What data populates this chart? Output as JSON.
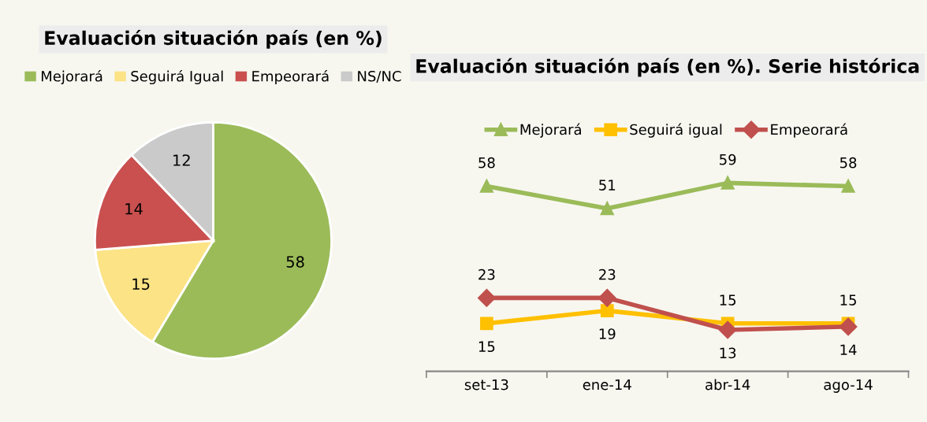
{
  "chart_data": [
    {
      "type": "pie",
      "title": "Evaluación situación país (en %)",
      "categories": [
        "Mejorará",
        "Seguirá Igual",
        "Empeorará",
        "NS/NC"
      ],
      "values": [
        58,
        15,
        14,
        12
      ],
      "colors": [
        "#9bbb59",
        "#fbe386",
        "#c9504f",
        "#cacaca"
      ],
      "data_labels": true,
      "legend": "top"
    },
    {
      "type": "line",
      "title": "Evaluación situación país (en %). Serie histórica",
      "categories": [
        "set-13",
        "ene-14",
        "abr-14",
        "ago-14"
      ],
      "series": [
        {
          "name": "Mejorará",
          "color": "#9bbb59",
          "marker": "triangle",
          "values": [
            58,
            51,
            59,
            58
          ]
        },
        {
          "name": "Seguirá igual",
          "color": "#ffc000",
          "marker": "square",
          "values": [
            15,
            19,
            15,
            15
          ]
        },
        {
          "name": "Empeorará",
          "color": "#c0504d",
          "marker": "diamond",
          "values": [
            23,
            23,
            13,
            14
          ]
        }
      ],
      "data_labels": true,
      "legend": "top",
      "grid": false
    }
  ]
}
